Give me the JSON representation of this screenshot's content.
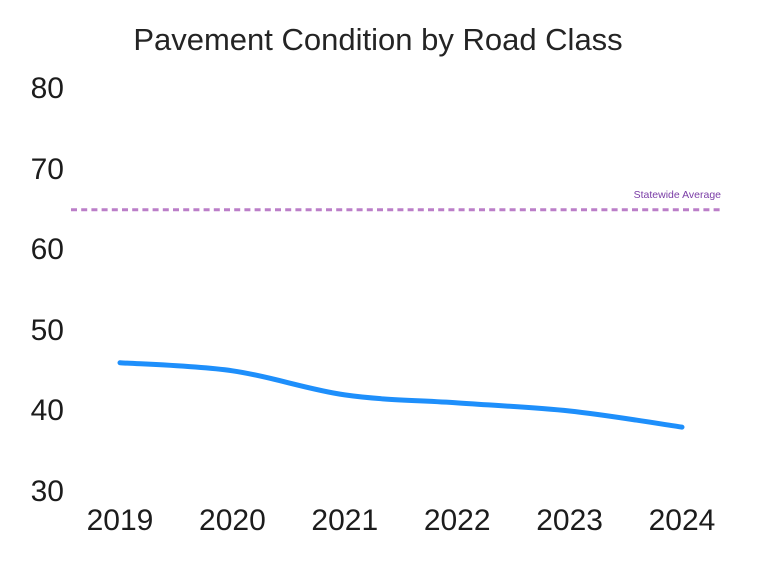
{
  "title": "Pavement Condition by Road Class",
  "colors": {
    "series_line": "#1e8ffb",
    "reference_line": "#bb7ec8",
    "reference_label_text": "#7a3ca6",
    "axis_text": "#1c1c1c",
    "title_text": "#242424",
    "background": "#ffffff"
  },
  "chart_data": {
    "type": "line",
    "title": "Pavement Condition by Road Class",
    "categories": [
      "2019",
      "2020",
      "2021",
      "2022",
      "2023",
      "2024"
    ],
    "series": [
      {
        "name": "Road Class",
        "values": [
          46,
          45,
          42,
          41,
          40,
          38
        ],
        "color": "#1e8ffb"
      }
    ],
    "reference_line": {
      "label": "Statewide Average",
      "value": 65,
      "color": "#bb7ec8",
      "style": "dashed"
    },
    "xlabel": "",
    "ylabel": "",
    "ylim": [
      30,
      85
    ],
    "yticks": [
      30,
      40,
      50,
      60,
      70,
      80
    ],
    "grid": false,
    "legend": "none",
    "axis_lines": false
  }
}
